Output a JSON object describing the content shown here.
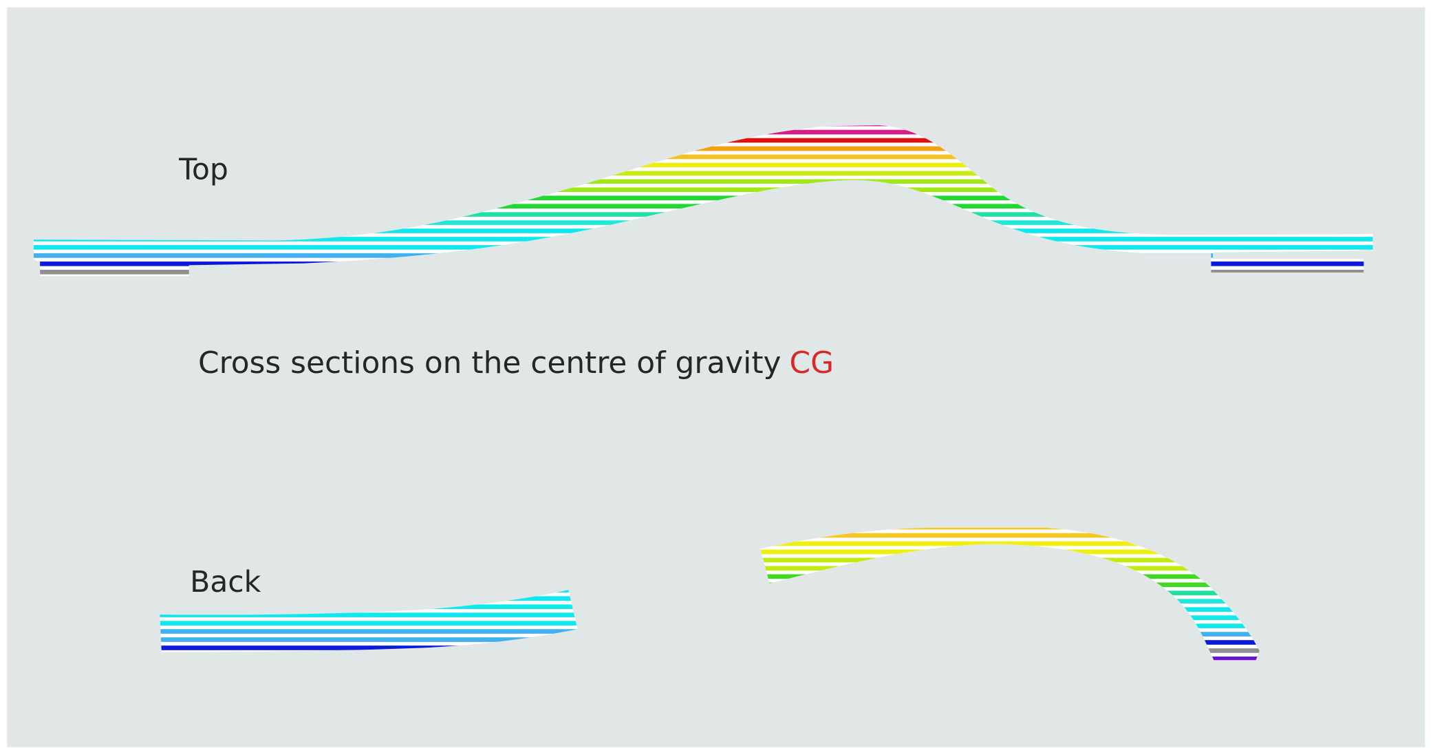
{
  "labels": {
    "top": "Top",
    "caption": "Cross sections on the centre of gravity",
    "caption_highlight": "CG",
    "back": "Back"
  }
}
